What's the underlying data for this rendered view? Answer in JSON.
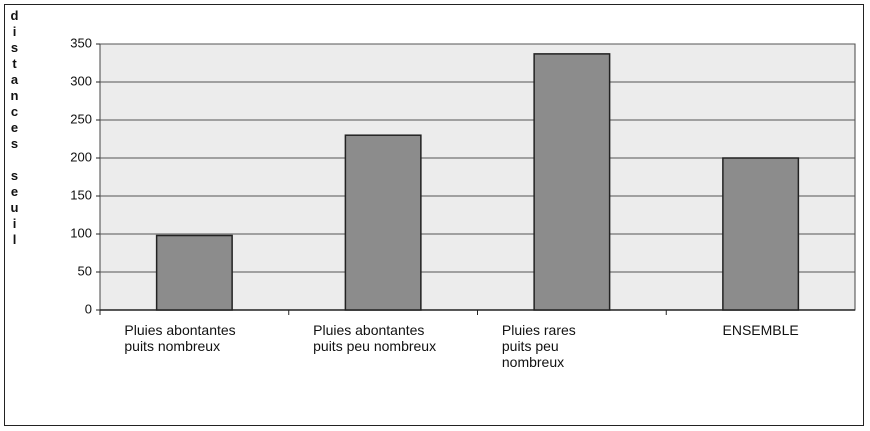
{
  "chart_data": {
    "type": "bar",
    "y_label": "distances seuil",
    "categories": [
      "Pluies abontantes\npuits nombreux",
      "Pluies abontantes\npuits peu nombreux",
      "Pluies rares\npuits peu\nnombreux",
      "ENSEMBLE"
    ],
    "values": [
      98,
      230,
      337,
      200
    ],
    "color": "#8c8c8c",
    "ylim": [
      0,
      350
    ],
    "yticks": [
      0,
      50,
      100,
      150,
      200,
      250,
      300,
      350
    ],
    "grid": true
  }
}
